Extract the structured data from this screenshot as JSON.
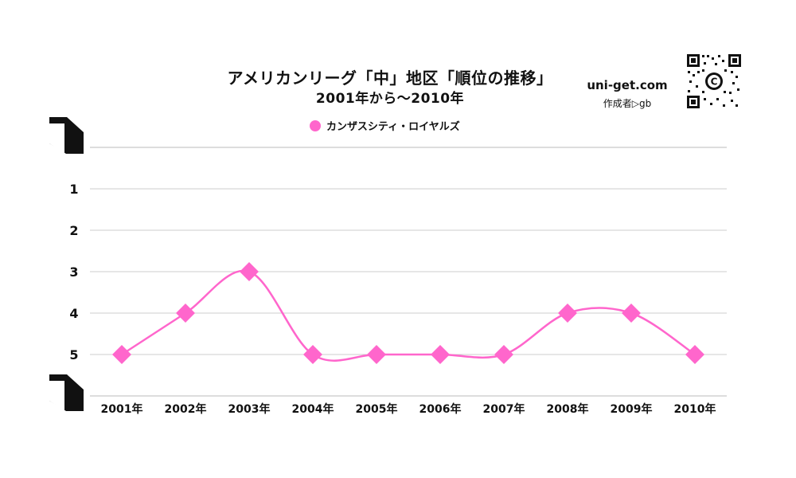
{
  "header": {
    "title": "アメリカンリーグ「中」地区「順位の推移」",
    "subtitle": "2001年から～2010年"
  },
  "brand": {
    "site": "uni-get.com",
    "author": "作成者▷gb",
    "qr_icon": "qr-code-icon"
  },
  "colors": {
    "series": "#FF66CC",
    "grid": "#cccccc",
    "text": "#111111"
  },
  "chart_data": {
    "type": "line",
    "title": "アメリカンリーグ「中」地区「順位の推移」",
    "subtitle": "2001年から～2010年",
    "xlabel": "",
    "ylabel": "",
    "categories": [
      "2001年",
      "2002年",
      "2003年",
      "2004年",
      "2005年",
      "2006年",
      "2007年",
      "2008年",
      "2009年",
      "2010年"
    ],
    "series": [
      {
        "name": "カンザスシティ・ロイヤルズ",
        "color": "#FF66CC",
        "marker": "diamond",
        "smooth": true,
        "values": [
          5,
          4,
          3,
          5,
          5,
          5,
          5,
          4,
          4,
          5
        ]
      }
    ],
    "yticks": [
      1,
      2,
      3,
      4,
      5
    ],
    "ylim": [
      0,
      6
    ],
    "y_inverted": true,
    "grid": true,
    "legend_position": "top-center"
  }
}
